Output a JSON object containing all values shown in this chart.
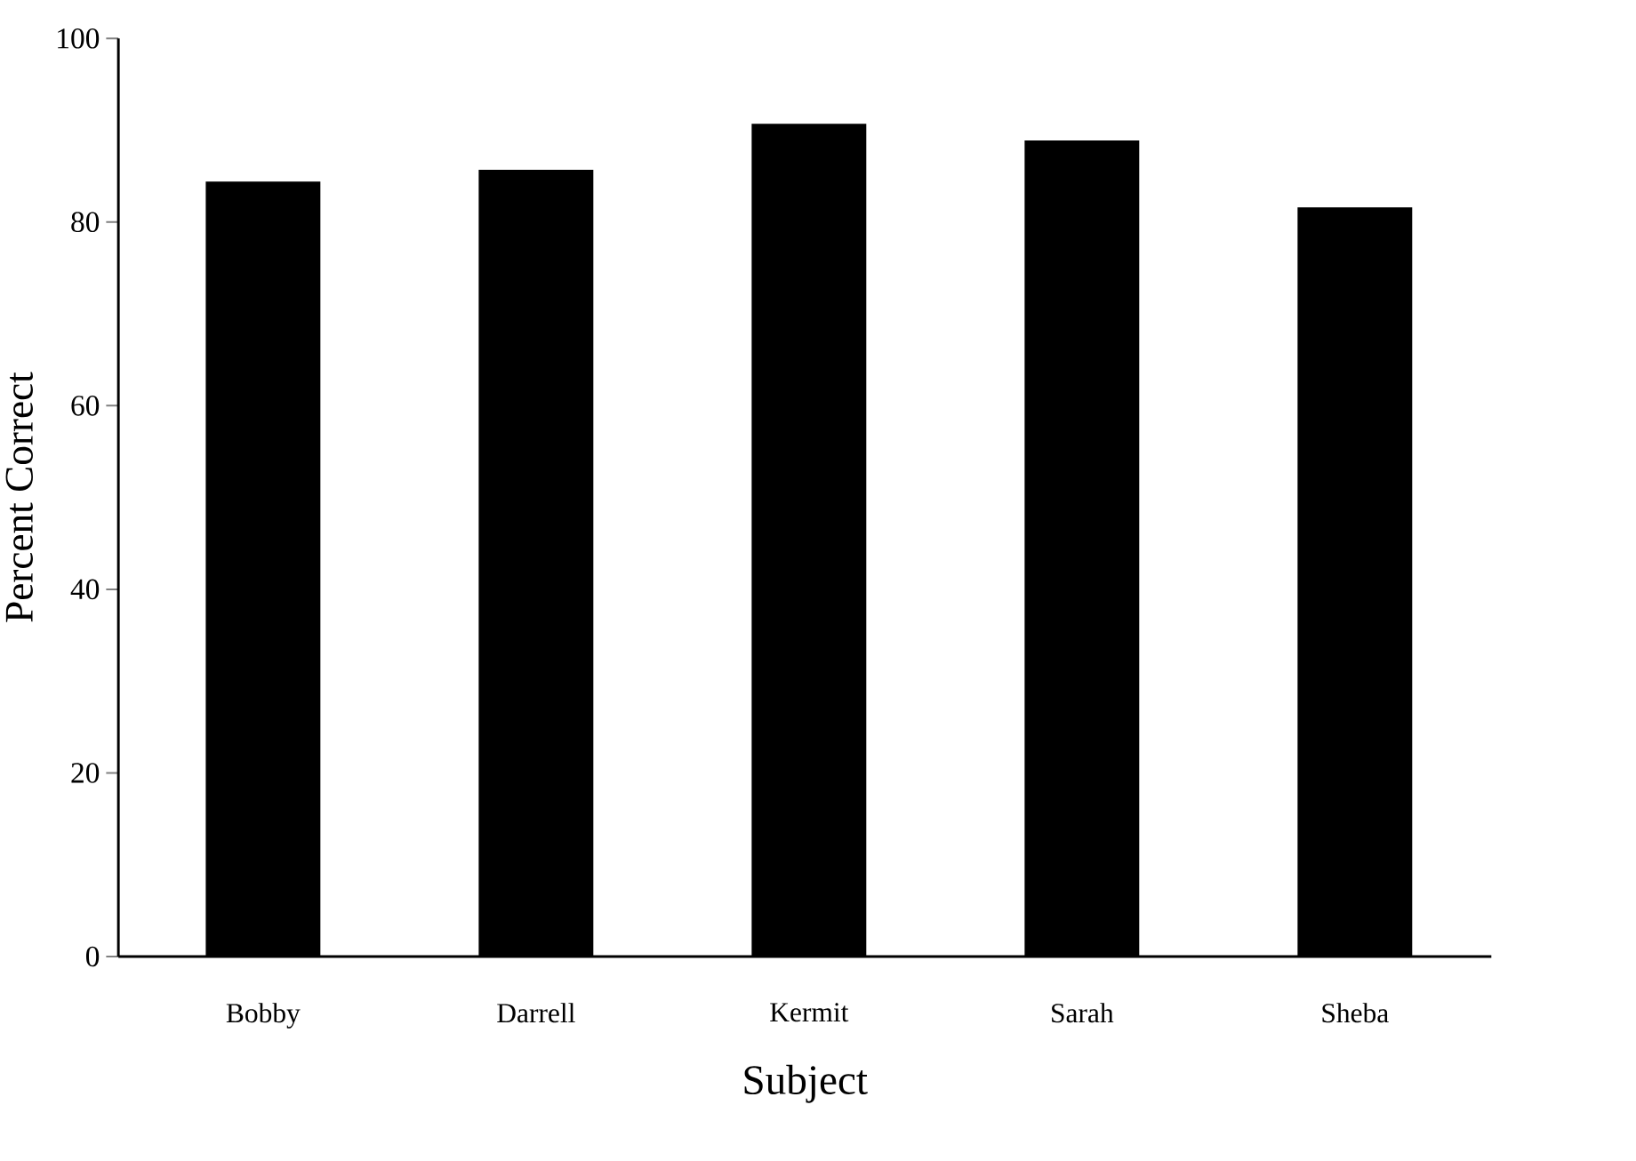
{
  "chart_data": {
    "type": "bar",
    "xlabel": "Subject",
    "ylabel": "Percent Correct",
    "categories": [
      "Bobby",
      "Darrell",
      "Kermit",
      "Sarah",
      "Sheba"
    ],
    "values": [
      84.4,
      85.7,
      90.7,
      88.9,
      81.6
    ],
    "color": "#000000",
    "ylim": [
      0,
      100
    ],
    "yticks": [
      0,
      20,
      40,
      60,
      80,
      100
    ]
  }
}
